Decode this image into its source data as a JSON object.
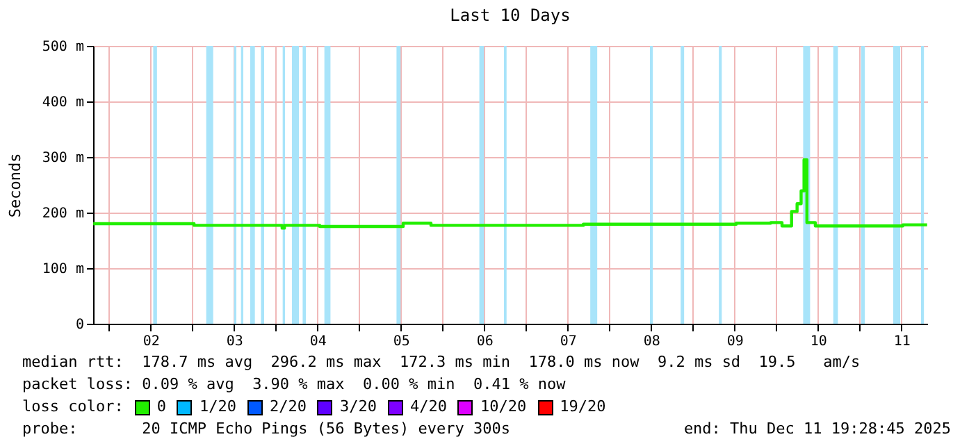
{
  "chart_data": {
    "type": "step",
    "title": "Last 10 Days",
    "ylabel": "Seconds",
    "legend_title": "loss color:",
    "legend": "bottom",
    "grid": true,
    "xlim": [
      "2025-12-01T19:28",
      "2025-12-11T19:28"
    ],
    "xticks": [
      {
        "value": "2025-12-02T00:00",
        "label": null
      },
      {
        "value": "2025-12-02T12:00",
        "label": "02"
      },
      {
        "value": "2025-12-03T00:00",
        "label": null
      },
      {
        "value": "2025-12-03T12:00",
        "label": "03"
      },
      {
        "value": "2025-12-04T00:00",
        "label": null
      },
      {
        "value": "2025-12-04T12:00",
        "label": "04"
      },
      {
        "value": "2025-12-05T00:00",
        "label": null
      },
      {
        "value": "2025-12-05T12:00",
        "label": "05"
      },
      {
        "value": "2025-12-06T00:00",
        "label": null
      },
      {
        "value": "2025-12-06T12:00",
        "label": "06"
      },
      {
        "value": "2025-12-07T00:00",
        "label": null
      },
      {
        "value": "2025-12-07T12:00",
        "label": "07"
      },
      {
        "value": "2025-12-08T00:00",
        "label": null
      },
      {
        "value": "2025-12-08T12:00",
        "label": "08"
      },
      {
        "value": "2025-12-09T00:00",
        "label": null
      },
      {
        "value": "2025-12-09T12:00",
        "label": "09"
      },
      {
        "value": "2025-12-10T00:00",
        "label": null
      },
      {
        "value": "2025-12-10T12:00",
        "label": "10"
      },
      {
        "value": "2025-12-11T00:00",
        "label": null
      },
      {
        "value": "2025-12-11T12:00",
        "label": "11"
      }
    ],
    "ylim": [
      0,
      500
    ],
    "yticks": [
      0,
      {
        "value": 100,
        "label": "100 m"
      },
      {
        "value": 200,
        "label": "200 m"
      },
      {
        "value": 300,
        "label": "300 m"
      },
      {
        "value": 400,
        "label": "400 m"
      },
      {
        "value": 500,
        "label": "500 m"
      }
    ],
    "series": [
      {
        "name": "0",
        "color": "#22ee00",
        "x": [
          "2025-12-01T19:30",
          "2025-12-03T00:30",
          "2025-12-04T01:50",
          "2025-12-04T02:30",
          "2025-12-04T12:40",
          "2025-12-05T12:40",
          "2025-12-05T20:40",
          "2025-12-07T16:30",
          "2025-12-09T12:30",
          "2025-12-09T22:25",
          "2025-12-10T01:40",
          "2025-12-10T04:25",
          "2025-12-10T06:00",
          "2025-12-10T07:10",
          "2025-12-10T08:00",
          "2025-12-10T08:50",
          "2025-12-10T11:15",
          "2025-12-11T12:25",
          "2025-12-11T19:25"
        ],
        "values": [
          180,
          177,
          172,
          177,
          175,
          181,
          177,
          179,
          181,
          182,
          176,
          202,
          216,
          239,
          295,
          182,
          176,
          178,
          178
        ]
      },
      {
        "name": "1/20",
        "color": "#00b8ff"
      },
      {
        "name": "2/20",
        "color": "#0059ff"
      },
      {
        "name": "3/20",
        "color": "#5e00ff"
      },
      {
        "name": "4/20",
        "color": "#7e00ff"
      },
      {
        "name": "10/20",
        "color": "#dd00ff"
      },
      {
        "name": "19/20",
        "color": "#ff0000"
      }
    ],
    "bands": [
      {
        "axis": "x",
        "from": "2025-12-02T12:45",
        "to": "2025-12-02T13:50",
        "color": "#a8e4fa"
      },
      {
        "axis": "x",
        "from": "2025-12-03T04:00",
        "to": "2025-12-03T06:00",
        "color": "#a8e4fa"
      },
      {
        "axis": "x",
        "from": "2025-12-03T12:00",
        "to": "2025-12-03T12:40",
        "color": "#a8e4fa"
      },
      {
        "axis": "x",
        "from": "2025-12-03T14:00",
        "to": "2025-12-03T14:40",
        "color": "#a8e4fa"
      },
      {
        "axis": "x",
        "from": "2025-12-03T16:40",
        "to": "2025-12-03T18:00",
        "color": "#a8e4fa"
      },
      {
        "axis": "x",
        "from": "2025-12-03T19:45",
        "to": "2025-12-03T20:40",
        "color": "#a8e4fa"
      },
      {
        "axis": "x",
        "from": "2025-12-04T02:00",
        "to": "2025-12-04T02:40",
        "color": "#a8e4fa"
      },
      {
        "axis": "x",
        "from": "2025-12-04T04:40",
        "to": "2025-12-04T06:40",
        "color": "#a8e4fa"
      },
      {
        "axis": "x",
        "from": "2025-12-04T07:45",
        "to": "2025-12-04T08:40",
        "color": "#a8e4fa"
      },
      {
        "axis": "x",
        "from": "2025-12-04T14:00",
        "to": "2025-12-04T15:45",
        "color": "#a8e4fa"
      },
      {
        "axis": "x",
        "from": "2025-12-05T10:45",
        "to": "2025-12-05T11:55",
        "color": "#a8e4fa"
      },
      {
        "axis": "x",
        "from": "2025-12-06T10:35",
        "to": "2025-12-06T11:55",
        "color": "#a8e4fa"
      },
      {
        "axis": "x",
        "from": "2025-12-06T17:40",
        "to": "2025-12-06T18:25",
        "color": "#a8e4fa"
      },
      {
        "axis": "x",
        "from": "2025-12-07T18:30",
        "to": "2025-12-07T20:30",
        "color": "#a8e4fa"
      },
      {
        "axis": "x",
        "from": "2025-12-08T11:40",
        "to": "2025-12-08T12:30",
        "color": "#a8e4fa"
      },
      {
        "axis": "x",
        "from": "2025-12-08T20:30",
        "to": "2025-12-08T21:30",
        "color": "#a8e4fa"
      },
      {
        "axis": "x",
        "from": "2025-12-09T07:30",
        "to": "2025-12-09T08:20",
        "color": "#a8e4fa"
      },
      {
        "axis": "x",
        "from": "2025-12-10T07:45",
        "to": "2025-12-10T09:45",
        "color": "#a8e4fa"
      },
      {
        "axis": "x",
        "from": "2025-12-10T16:25",
        "to": "2025-12-10T17:45",
        "color": "#a8e4fa"
      },
      {
        "axis": "x",
        "from": "2025-12-11T00:25",
        "to": "2025-12-11T01:30",
        "color": "#a8e4fa"
      },
      {
        "axis": "x",
        "from": "2025-12-11T09:40",
        "to": "2025-12-11T11:40",
        "color": "#a8e4fa"
      },
      {
        "axis": "x",
        "from": "2025-12-11T17:40",
        "to": "2025-12-11T18:30",
        "color": "#a8e4fa"
      }
    ],
    "annotations": [
      "median rtt:  178.7 ms avg  296.2 ms max  172.3 ms min  178.0 ms now  9.2 ms sd  19.5   am/s",
      "packet loss: 0.09 % avg  3.90 % max  0.00 % min  0.41 % now",
      "probe:       20 ICMP Echo Pings (56 Bytes) every 300s",
      "end: Thu Dec 11 19:28:45 2025"
    ]
  }
}
